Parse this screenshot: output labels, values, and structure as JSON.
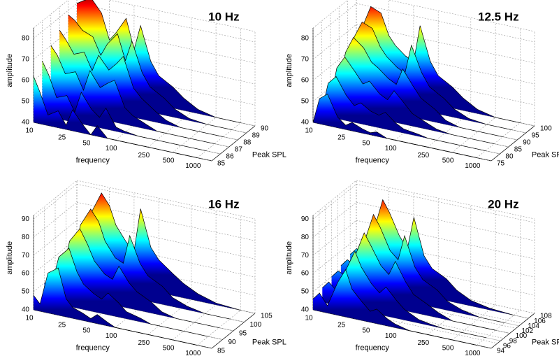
{
  "chart_data": [
    {
      "type": "waterfall",
      "title": "10 Hz",
      "xlabel": "frequency",
      "ylabel": "Peak SPL",
      "zlabel": "amplitude",
      "log_x": true,
      "grid": true,
      "xlim": [
        10,
        1500
      ],
      "xticks": [
        10,
        25,
        50,
        100,
        250,
        500,
        1000
      ],
      "ylim": [
        85,
        90
      ],
      "yticks": [
        85,
        86,
        87,
        88,
        89,
        90
      ],
      "zlim": [
        40,
        85
      ],
      "zticks": [
        40,
        50,
        60,
        70,
        80
      ],
      "x": [
        10,
        12,
        15,
        20,
        25,
        30,
        40,
        50,
        60,
        80,
        100,
        150,
        200,
        300,
        500,
        1000
      ],
      "slices": [
        {
          "spl": 85,
          "values": [
            62,
            55,
            45,
            48,
            42,
            50,
            44,
            40,
            45,
            40,
            40,
            40,
            40,
            40,
            40,
            40
          ]
        },
        {
          "spl": 86,
          "values": [
            66,
            60,
            50,
            52,
            45,
            55,
            48,
            45,
            50,
            42,
            41,
            40,
            40,
            40,
            40,
            40
          ]
        },
        {
          "spl": 87,
          "values": [
            70,
            66,
            58,
            60,
            52,
            62,
            55,
            58,
            60,
            48,
            45,
            42,
            40,
            40,
            40,
            40
          ]
        },
        {
          "spl": 88,
          "values": [
            74,
            70,
            64,
            66,
            58,
            66,
            60,
            64,
            68,
            54,
            50,
            45,
            42,
            40,
            40,
            40
          ]
        },
        {
          "spl": 89,
          "values": [
            78,
            76,
            72,
            70,
            62,
            68,
            74,
            62,
            72,
            58,
            52,
            48,
            44,
            41,
            40,
            40
          ]
        },
        {
          "spl": 90,
          "values": [
            80,
            82,
            84,
            78,
            66,
            70,
            78,
            64,
            76,
            60,
            54,
            50,
            46,
            42,
            40,
            40
          ]
        }
      ]
    },
    {
      "type": "waterfall",
      "title": "12.5 Hz",
      "xlabel": "frequency",
      "ylabel": "Peak SPL",
      "zlabel": "amplitude",
      "log_x": true,
      "grid": true,
      "xlim": [
        10,
        1500
      ],
      "xticks": [
        10,
        25,
        50,
        100,
        250,
        500,
        1000
      ],
      "ylim": [
        75,
        100
      ],
      "yticks": [
        75,
        80,
        85,
        90,
        95,
        100
      ],
      "zlim": [
        40,
        85
      ],
      "zticks": [
        40,
        50,
        60,
        70,
        80
      ],
      "x": [
        10,
        12,
        15,
        20,
        25,
        30,
        40,
        50,
        60,
        80,
        100,
        150,
        200,
        300,
        500,
        1000
      ],
      "slices": [
        {
          "spl": 75,
          "values": [
            40,
            52,
            55,
            45,
            42,
            44,
            42,
            41,
            42,
            40,
            40,
            40,
            40,
            40,
            40,
            40
          ]
        },
        {
          "spl": 80,
          "values": [
            42,
            56,
            60,
            52,
            48,
            50,
            47,
            46,
            48,
            44,
            42,
            41,
            40,
            40,
            40,
            40
          ]
        },
        {
          "spl": 85,
          "values": [
            44,
            60,
            66,
            60,
            55,
            57,
            52,
            50,
            55,
            50,
            46,
            43,
            41,
            40,
            40,
            40
          ]
        },
        {
          "spl": 90,
          "values": [
            46,
            64,
            72,
            68,
            62,
            60,
            56,
            54,
            62,
            55,
            50,
            46,
            42,
            40,
            40,
            40
          ]
        },
        {
          "spl": 95,
          "values": [
            48,
            68,
            76,
            74,
            66,
            62,
            58,
            56,
            70,
            58,
            52,
            48,
            44,
            41,
            40,
            40
          ]
        },
        {
          "spl": 100,
          "values": [
            50,
            70,
            80,
            78,
            68,
            64,
            60,
            58,
            76,
            60,
            54,
            50,
            46,
            42,
            40,
            40
          ]
        }
      ]
    },
    {
      "type": "waterfall",
      "title": "16 Hz",
      "xlabel": "frequency",
      "ylabel": "Peak SPL",
      "zlabel": "amplitude",
      "log_x": true,
      "grid": true,
      "xlim": [
        10,
        1500
      ],
      "xticks": [
        10,
        25,
        50,
        100,
        250,
        500,
        1000
      ],
      "ylim": [
        85,
        105
      ],
      "yticks": [
        85,
        90,
        95,
        100,
        105
      ],
      "zlim": [
        40,
        92
      ],
      "zticks": [
        40,
        50,
        60,
        70,
        80,
        90
      ],
      "x": [
        10,
        12,
        15,
        20,
        25,
        30,
        40,
        50,
        60,
        80,
        100,
        150,
        200,
        300,
        500,
        1000
      ],
      "slices": [
        {
          "spl": 85,
          "values": [
            48,
            44,
            62,
            66,
            50,
            46,
            44,
            42,
            45,
            42,
            40,
            40,
            40,
            40,
            40,
            40
          ]
        },
        {
          "spl": 90,
          "values": [
            50,
            48,
            66,
            72,
            60,
            54,
            50,
            48,
            52,
            48,
            44,
            42,
            40,
            40,
            40,
            40
          ]
        },
        {
          "spl": 95,
          "values": [
            52,
            50,
            70,
            78,
            70,
            62,
            56,
            54,
            62,
            54,
            50,
            46,
            42,
            40,
            40,
            40
          ]
        },
        {
          "spl": 100,
          "values": [
            54,
            52,
            74,
            84,
            78,
            68,
            60,
            58,
            74,
            60,
            54,
            50,
            45,
            42,
            40,
            40
          ]
        },
        {
          "spl": 105,
          "values": [
            56,
            54,
            76,
            88,
            82,
            72,
            64,
            60,
            84,
            64,
            58,
            52,
            48,
            44,
            41,
            40
          ]
        }
      ]
    },
    {
      "type": "waterfall",
      "title": "20 Hz",
      "xlabel": "frequency",
      "ylabel": "Peak SPL",
      "zlabel": "amplitude",
      "log_x": true,
      "grid": true,
      "xlim": [
        10,
        1500
      ],
      "xticks": [
        10,
        25,
        50,
        100,
        250,
        500,
        1000
      ],
      "ylim": [
        94,
        108
      ],
      "yticks": [
        94,
        96,
        98,
        100,
        102,
        104,
        106,
        108
      ],
      "zlim": [
        40,
        92
      ],
      "zticks": [
        40,
        50,
        60,
        70,
        80,
        90
      ],
      "x": [
        10,
        12,
        15,
        20,
        25,
        30,
        40,
        50,
        60,
        80,
        100,
        150,
        200,
        300,
        500,
        1000
      ],
      "slices": [
        {
          "spl": 94,
          "values": [
            46,
            50,
            44,
            58,
            66,
            56,
            50,
            46,
            48,
            44,
            42,
            40,
            40,
            40,
            40,
            40
          ]
        },
        {
          "spl": 97,
          "values": [
            48,
            52,
            48,
            62,
            72,
            64,
            56,
            52,
            56,
            50,
            46,
            42,
            41,
            40,
            40,
            40
          ]
        },
        {
          "spl": 100,
          "values": [
            50,
            54,
            52,
            66,
            78,
            72,
            62,
            58,
            66,
            56,
            50,
            46,
            43,
            40,
            40,
            40
          ]
        },
        {
          "spl": 103,
          "values": [
            52,
            56,
            54,
            70,
            84,
            78,
            66,
            62,
            76,
            60,
            54,
            50,
            45,
            42,
            40,
            40
          ]
        },
        {
          "spl": 106,
          "values": [
            54,
            58,
            56,
            72,
            88,
            82,
            70,
            64,
            82,
            62,
            56,
            52,
            47,
            43,
            41,
            40
          ]
        }
      ]
    }
  ]
}
